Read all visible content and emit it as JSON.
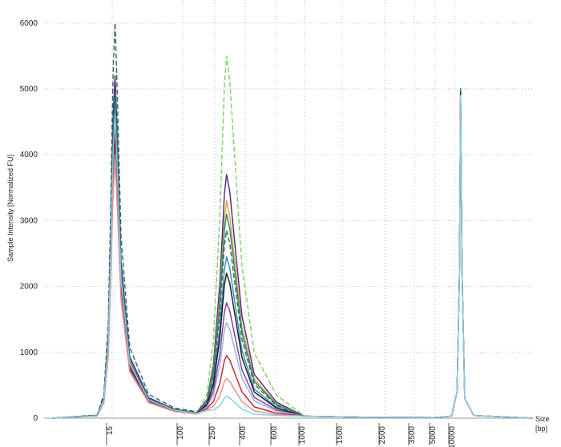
{
  "chart_data": {
    "type": "line",
    "y_label": "Sample Intensity [Normalized FU]",
    "x_label": "Size",
    "x_unit": "[bp]",
    "x": [
      3,
      10,
      12,
      13.5,
      14.5,
      15,
      15.5,
      16.2,
      17,
      19,
      24,
      40,
      80,
      150,
      200,
      240,
      270,
      290,
      300,
      315,
      340,
      380,
      450,
      600,
      1000,
      2000,
      5000,
      9000,
      11000,
      12000,
      12500,
      13200,
      14500,
      20000,
      170000
    ],
    "xlim": [
      2.4,
      170000
    ],
    "xticks": [
      15,
      100,
      250,
      400,
      600,
      1000,
      1500,
      2500,
      3500,
      5000,
      10000
    ],
    "ylim": [
      0,
      6350
    ],
    "yticks": [
      0,
      1000,
      2000,
      3000,
      4000,
      5000,
      6000
    ],
    "grid": true,
    "series": [
      {
        "color": "#2e6b4f",
        "dashed": true,
        "values": [
          0,
          48,
          360,
          1440,
          3360,
          4560,
          5400,
          6000,
          5160,
          2760,
          1080,
          360,
          156,
          96,
          243,
          630,
          1568,
          2622,
          2850,
          2651,
          2052,
          1197,
          513,
          191,
          30,
          15,
          10,
          30,
          400,
          2200,
          5000,
          2200,
          300,
          40,
          0
        ]
      },
      {
        "color": "#7ccf6a",
        "dashed": true,
        "values": [
          0,
          34,
          252,
          1008,
          2352,
          3192,
          3780,
          4200,
          3612,
          1932,
          756,
          252,
          109,
          67,
          375,
          1160,
          3025,
          5060,
          5500,
          5115,
          3960,
          2310,
          990,
          350,
          30,
          15,
          10,
          30,
          400,
          2200,
          4900,
          2200,
          300,
          40,
          0
        ]
      },
      {
        "color": "#4b1f8c",
        "dashed": false,
        "values": [
          0,
          42,
          312,
          1248,
          2912,
          3952,
          4680,
          5200,
          4472,
          2392,
          936,
          312,
          135,
          83,
          285,
          800,
          2035,
          3404,
          3700,
          3441,
          2664,
          1554,
          666,
          242,
          30,
          15,
          10,
          30,
          400,
          2200,
          4950,
          2200,
          300,
          40,
          0
        ]
      },
      {
        "color": "#e8a030",
        "dashed": false,
        "values": [
          0,
          38,
          282,
          1128,
          2632,
          3572,
          4230,
          4700,
          4042,
          2162,
          846,
          282,
          122,
          75,
          265,
          720,
          1815,
          3036,
          3300,
          3069,
          2376,
          1386,
          594,
          218,
          30,
          15,
          10,
          30,
          400,
          2200,
          4850,
          2200,
          300,
          40,
          0
        ]
      },
      {
        "color": "#1f8a6a",
        "dashed": false,
        "values": [
          0,
          39,
          294,
          1176,
          2744,
          3724,
          4410,
          4900,
          4214,
          2254,
          882,
          294,
          127,
          78,
          255,
          680,
          1705,
          2852,
          3100,
          2883,
          2232,
          1302,
          558,
          206,
          30,
          15,
          10,
          30,
          400,
          2200,
          5000,
          2200,
          300,
          40,
          0
        ]
      },
      {
        "color": "#3a7fc0",
        "dashed": false,
        "values": [
          0,
          36,
          270,
          1080,
          2520,
          3420,
          4050,
          4500,
          3870,
          2070,
          810,
          270,
          117,
          72,
          223,
          550,
          1348,
          2254,
          2450,
          2279,
          1764,
          1029,
          441,
          167,
          30,
          15,
          10,
          30,
          400,
          2200,
          4900,
          2200,
          300,
          40,
          0
        ]
      },
      {
        "color": "#111111",
        "dashed": false,
        "values": [
          0,
          34,
          258,
          1032,
          2408,
          3268,
          3870,
          4300,
          3698,
          1978,
          774,
          258,
          112,
          69,
          210,
          500,
          1210,
          2024,
          2200,
          2046,
          1584,
          924,
          396,
          152,
          30,
          15,
          10,
          30,
          400,
          2200,
          4950,
          2200,
          300,
          40,
          0
        ]
      },
      {
        "color": "#7a3a9a",
        "dashed": false,
        "values": [
          0,
          33,
          246,
          984,
          2296,
          3116,
          3690,
          4100,
          3526,
          1886,
          738,
          246,
          107,
          66,
          188,
          410,
          963,
          1610,
          1750,
          1628,
          1260,
          735,
          315,
          125,
          30,
          15,
          10,
          30,
          400,
          2200,
          4800,
          2200,
          300,
          40,
          0
        ]
      },
      {
        "color": "#8fb0e0",
        "dashed": false,
        "values": [
          0,
          32,
          240,
          960,
          2240,
          3040,
          3600,
          4000,
          3440,
          1840,
          720,
          240,
          104,
          64,
          173,
          350,
          798,
          1334,
          1450,
          1349,
          1044,
          609,
          261,
          107,
          30,
          15,
          10,
          30,
          400,
          2200,
          4900,
          2200,
          300,
          40,
          0
        ]
      },
      {
        "color": "#c0202a",
        "dashed": false,
        "values": [
          0,
          35,
          264,
          1056,
          2464,
          3344,
          3960,
          4400,
          3784,
          2024,
          792,
          264,
          114,
          70,
          148,
          250,
          523,
          874,
          950,
          884,
          684,
          399,
          171,
          77,
          30,
          15,
          10,
          30,
          400,
          2200,
          4850,
          2200,
          300,
          40,
          0
        ]
      },
      {
        "color": "#e88a8a",
        "dashed": false,
        "values": [
          0,
          31,
          234,
          936,
          2184,
          2964,
          3510,
          3900,
          3354,
          1794,
          702,
          234,
          101,
          62,
          130,
          180,
          330,
          552,
          600,
          558,
          432,
          252,
          108,
          56,
          30,
          15,
          10,
          30,
          400,
          2200,
          4750,
          2200,
          300,
          40,
          0
        ]
      },
      {
        "color": "#7fd0e0",
        "dashed": false,
        "values": [
          0,
          37,
          276,
          1104,
          2576,
          3496,
          4140,
          4600,
          3956,
          2116,
          828,
          276,
          120,
          74,
          117,
          126,
          182,
          304,
          330,
          307,
          238,
          139,
          59,
          40,
          30,
          15,
          10,
          30,
          400,
          2200,
          4900,
          2200,
          300,
          40,
          0
        ]
      }
    ]
  }
}
